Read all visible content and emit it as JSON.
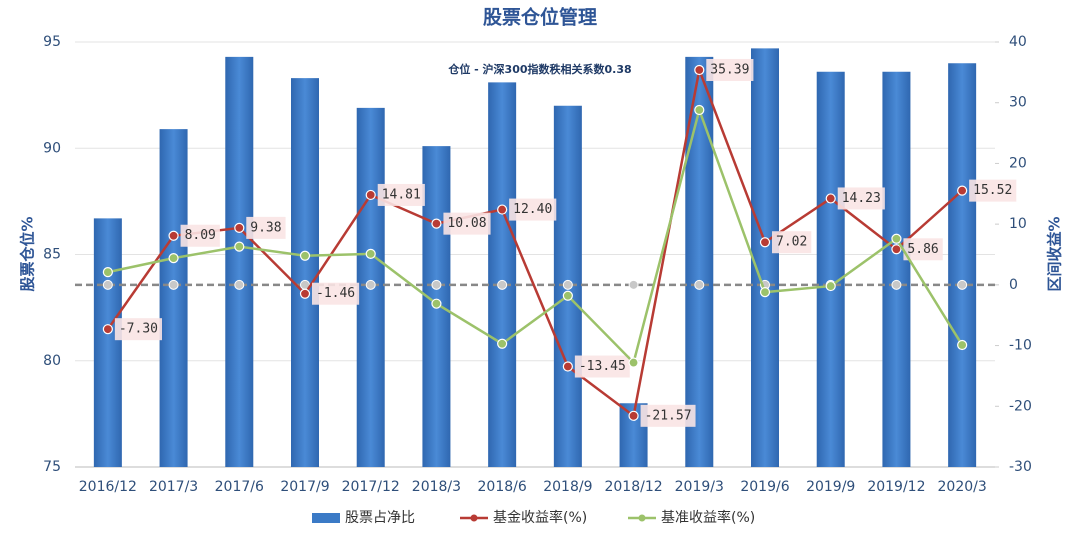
{
  "chart_data": {
    "type": "bar",
    "title": "股票仓位管理",
    "annotation": "仓位 - 沪深300指数秩相关系数0.38",
    "y_label": "股票仓位%",
    "y2_label": "区间收益%",
    "categories": [
      "2016/12",
      "2017/3",
      "2017/6",
      "2017/9",
      "2017/12",
      "2018/3",
      "2018/6",
      "2018/9",
      "2018/12",
      "2019/3",
      "2019/6",
      "2019/9",
      "2019/12",
      "2020/3"
    ],
    "series": [
      {
        "name": "股票占净比",
        "type": "bar",
        "color": "#3b7ac6",
        "values": [
          86.7,
          90.9,
          94.3,
          93.3,
          91.9,
          90.1,
          93.1,
          92.0,
          78.0,
          94.3,
          94.7,
          93.6,
          93.6,
          94.0
        ]
      },
      {
        "name": "基金收益率(%)",
        "type": "line",
        "axis": "y2",
        "color": "#b83b34",
        "values": [
          -7.3,
          8.09,
          9.38,
          -1.46,
          14.81,
          10.08,
          12.4,
          -13.45,
          -21.57,
          35.39,
          7.02,
          14.23,
          5.86,
          15.52
        ],
        "value_labels": [
          "-7.30",
          "8.09",
          "9.38",
          "-1.46",
          "14.81",
          "10.08",
          "12.40",
          "-13.45",
          "-21.57",
          "35.39",
          "7.02",
          "14.23",
          "5.86",
          "15.52"
        ]
      },
      {
        "name": "基准收益率(%)",
        "type": "line",
        "axis": "y2",
        "color": "#9cc26a",
        "values": [
          2.1,
          4.4,
          6.3,
          4.8,
          5.1,
          -3.1,
          -9.7,
          -1.8,
          -12.8,
          28.8,
          -1.2,
          -0.2,
          7.6,
          -9.9
        ]
      }
    ],
    "ylim": [
      75,
      95
    ],
    "yticks": [
      75,
      80,
      85,
      90,
      95
    ],
    "y2lim": [
      -30,
      40
    ],
    "y2ticks": [
      -30,
      -20,
      -10,
      0,
      10,
      20,
      30,
      40
    ],
    "grid": true
  }
}
